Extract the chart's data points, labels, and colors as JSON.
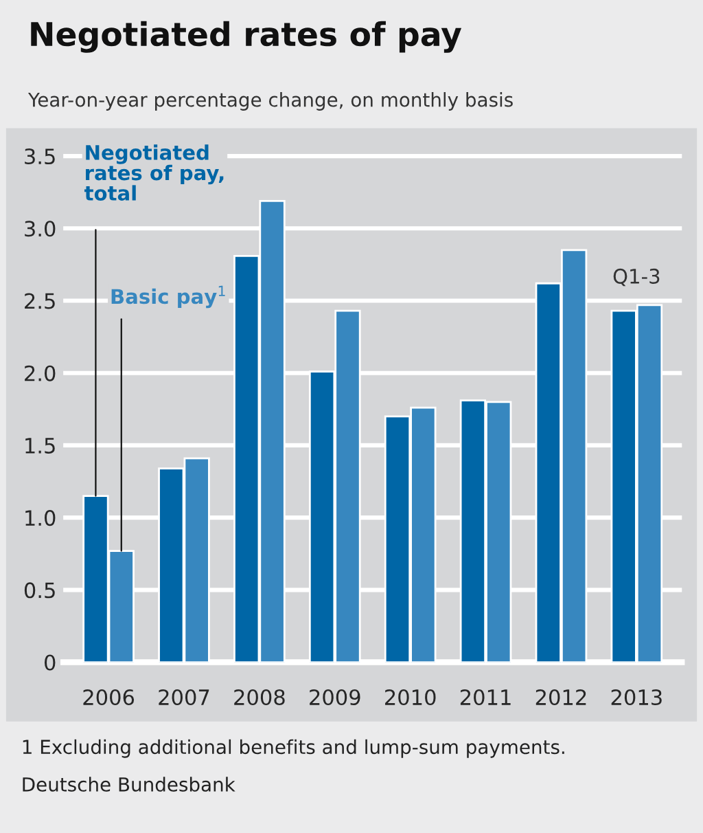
{
  "chart_data": {
    "type": "bar",
    "title": "Negotiated rates of pay",
    "subtitle": "Year-on-year percentage change, on monthly basis",
    "categories": [
      "2006",
      "2007",
      "2008",
      "2009",
      "2010",
      "2011",
      "2012",
      "2013"
    ],
    "series": [
      {
        "name": "Negotiated rates of pay, total",
        "color": "#0066a6",
        "values": [
          1.15,
          1.34,
          2.81,
          2.01,
          1.7,
          1.81,
          2.62,
          2.43
        ]
      },
      {
        "name": "Basic pay$^{1}$",
        "color": "#3787bf",
        "values": [
          0.77,
          1.41,
          3.19,
          2.43,
          1.76,
          1.8,
          2.85,
          2.47
        ]
      }
    ],
    "ylim": [
      0,
      3.6
    ],
    "yticks": [
      0,
      0.5,
      {
        "value": 1,
        "label": "1.0"
      },
      1.5,
      {
        "value": 2,
        "label": "2.0"
      },
      2.5,
      {
        "value": 3,
        "label": "3.0"
      },
      3.5
    ],
    "grid": "y",
    "legend": false,
    "annotations": [
      "Q1-3",
      "1 Excluding additional benefits and lump-sum payments.",
      "Deutsche Bundesbank"
    ]
  }
}
